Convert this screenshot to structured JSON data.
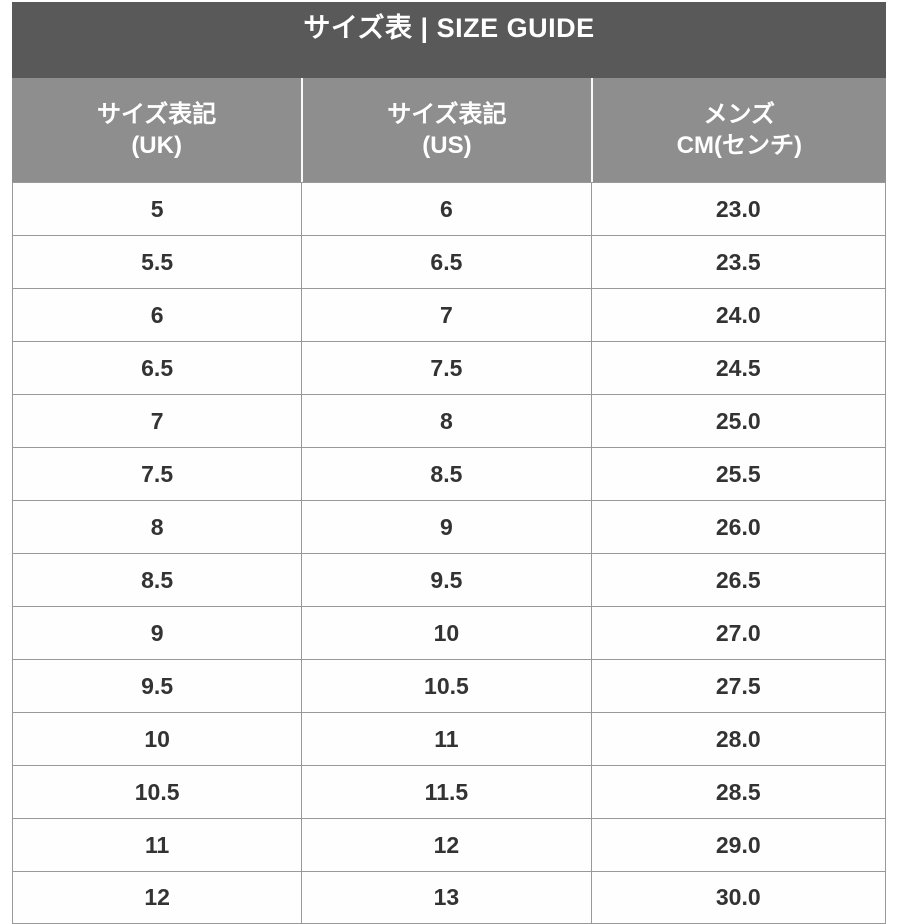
{
  "title": "サイズ表 | SIZE GUIDE",
  "header": {
    "columns": [
      {
        "line1": "サイズ表記",
        "line2": "(UK)"
      },
      {
        "line1": "サイズ表記",
        "line2": "(US)"
      },
      {
        "line1": "メンズ",
        "line2": "CM(センチ)"
      }
    ]
  },
  "rows": [
    [
      "5",
      "6",
      "23.0"
    ],
    [
      "5.5",
      "6.5",
      "23.5"
    ],
    [
      "6",
      "7",
      "24.0"
    ],
    [
      "6.5",
      "7.5",
      "24.5"
    ],
    [
      "7",
      "8",
      "25.0"
    ],
    [
      "7.5",
      "8.5",
      "25.5"
    ],
    [
      "8",
      "9",
      "26.0"
    ],
    [
      "8.5",
      "9.5",
      "26.5"
    ],
    [
      "9",
      "10",
      "27.0"
    ],
    [
      "9.5",
      "10.5",
      "27.5"
    ],
    [
      "10",
      "11",
      "28.0"
    ],
    [
      "10.5",
      "11.5",
      "28.5"
    ],
    [
      "11",
      "12",
      "29.0"
    ],
    [
      "12",
      "13",
      "30.0"
    ]
  ],
  "colors": {
    "title_bar_bg": "#595959",
    "header_bg": "#8e8e8e",
    "header_text": "#ffffff",
    "cell_text": "#333333",
    "border": "#999999",
    "page_bg": "#ffffff"
  },
  "chart_data": {
    "type": "table",
    "title": "サイズ表 | SIZE GUIDE",
    "columns": [
      "サイズ表記 (UK)",
      "サイズ表記 (US)",
      "メンズ CM(センチ)"
    ],
    "rows": [
      [
        "5",
        "6",
        "23.0"
      ],
      [
        "5.5",
        "6.5",
        "23.5"
      ],
      [
        "6",
        "7",
        "24.0"
      ],
      [
        "6.5",
        "7.5",
        "24.5"
      ],
      [
        "7",
        "8",
        "25.0"
      ],
      [
        "7.5",
        "8.5",
        "25.5"
      ],
      [
        "8",
        "9",
        "26.0"
      ],
      [
        "8.5",
        "9.5",
        "26.5"
      ],
      [
        "9",
        "10",
        "27.0"
      ],
      [
        "9.5",
        "10.5",
        "27.5"
      ],
      [
        "10",
        "11",
        "28.0"
      ],
      [
        "10.5",
        "11.5",
        "28.5"
      ],
      [
        "11",
        "12",
        "29.0"
      ],
      [
        "12",
        "13",
        "30.0"
      ]
    ],
    "layout": {
      "title_position": "top",
      "last_row_clipped": true
    }
  }
}
